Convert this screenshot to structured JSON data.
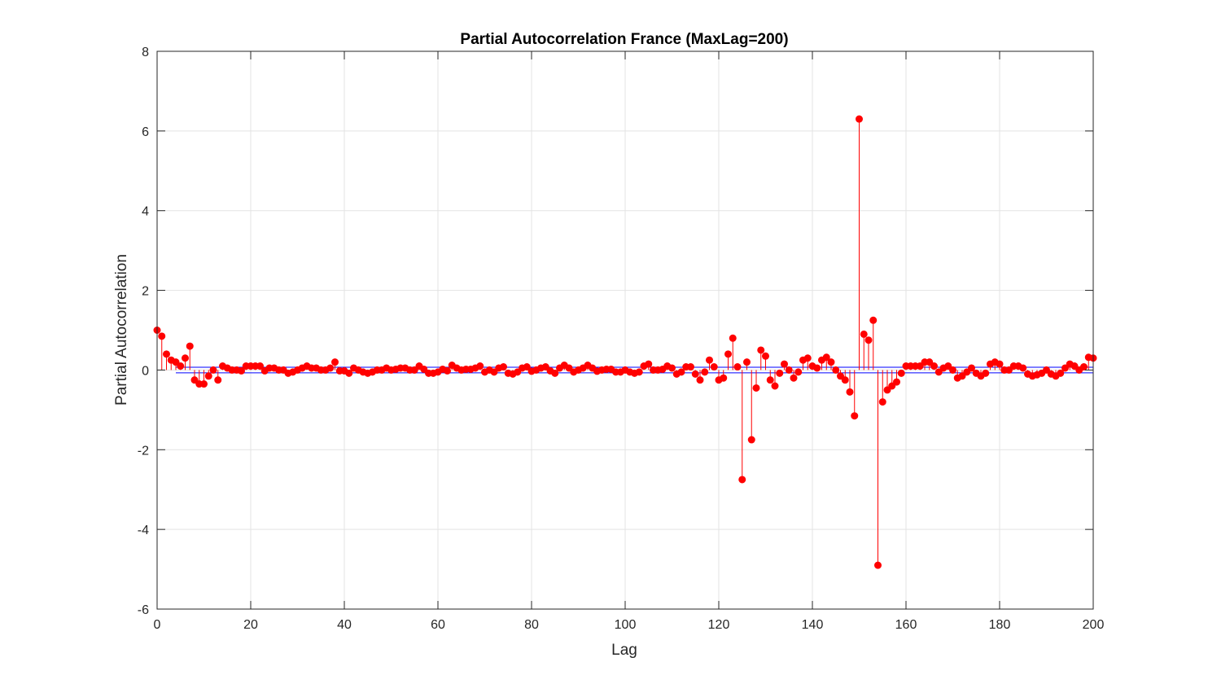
{
  "chart_data": {
    "type": "stem",
    "title": "Partial Autocorrelation France (MaxLag=200)",
    "xlabel": "Lag",
    "ylabel": "Partial Autocorrelation",
    "xlim": [
      0,
      200
    ],
    "ylim": [
      -6,
      8
    ],
    "xticks": [
      0,
      20,
      40,
      60,
      80,
      100,
      120,
      140,
      160,
      180,
      200
    ],
    "yticks": [
      -6,
      -4,
      -2,
      0,
      2,
      4,
      6,
      8
    ],
    "grid": true,
    "confidence_bounds": [
      0.07,
      -0.07
    ],
    "confidence_bounds_x_start": 4,
    "colors": {
      "stem": "#ff0000",
      "bounds": "#0000ff",
      "grid": "#e3e3e3",
      "axis": "#262626"
    },
    "x": [
      0,
      1,
      2,
      3,
      4,
      5,
      6,
      7,
      8,
      9,
      10,
      11,
      12,
      13,
      14,
      15,
      16,
      17,
      18,
      19,
      20,
      21,
      22,
      23,
      24,
      25,
      26,
      27,
      28,
      29,
      30,
      31,
      32,
      33,
      34,
      35,
      36,
      37,
      38,
      39,
      40,
      41,
      42,
      43,
      44,
      45,
      46,
      47,
      48,
      49,
      50,
      51,
      52,
      53,
      54,
      55,
      56,
      57,
      58,
      59,
      60,
      61,
      62,
      63,
      64,
      65,
      66,
      67,
      68,
      69,
      70,
      71,
      72,
      73,
      74,
      75,
      76,
      77,
      78,
      79,
      80,
      81,
      82,
      83,
      84,
      85,
      86,
      87,
      88,
      89,
      90,
      91,
      92,
      93,
      94,
      95,
      96,
      97,
      98,
      99,
      100,
      101,
      102,
      103,
      104,
      105,
      106,
      107,
      108,
      109,
      110,
      111,
      112,
      113,
      114,
      115,
      116,
      117,
      118,
      119,
      120,
      121,
      122,
      123,
      124,
      125,
      126,
      127,
      128,
      129,
      130,
      131,
      132,
      133,
      134,
      135,
      136,
      137,
      138,
      139,
      140,
      141,
      142,
      143,
      144,
      145,
      146,
      147,
      148,
      149,
      150,
      151,
      152,
      153,
      154,
      155,
      156,
      157,
      158,
      159,
      160,
      161,
      162,
      163,
      164,
      165,
      166,
      167,
      168,
      169,
      170,
      171,
      172,
      173,
      174,
      175,
      176,
      177,
      178,
      179,
      180,
      181,
      182,
      183,
      184,
      185,
      186,
      187,
      188,
      189,
      190,
      191,
      192,
      193,
      194,
      195,
      196,
      197,
      198,
      199,
      200
    ],
    "values": [
      1.0,
      0.85,
      0.4,
      0.25,
      0.2,
      0.1,
      0.3,
      0.6,
      -0.25,
      -0.35,
      -0.35,
      -0.15,
      0.0,
      -0.25,
      0.1,
      0.05,
      0.0,
      0.0,
      -0.02,
      0.1,
      0.1,
      0.1,
      0.1,
      -0.02,
      0.05,
      0.05,
      0.0,
      0.0,
      -0.08,
      -0.05,
      0.0,
      0.05,
      0.1,
      0.05,
      0.05,
      0.0,
      0.0,
      0.05,
      0.2,
      -0.02,
      -0.02,
      -0.08,
      0.05,
      0.0,
      -0.05,
      -0.08,
      -0.05,
      0.0,
      0.0,
      0.05,
      0.0,
      0.02,
      0.05,
      0.05,
      0.0,
      0.0,
      0.1,
      0.02,
      -0.08,
      -0.08,
      -0.05,
      0.02,
      -0.02,
      0.12,
      0.05,
      0.0,
      0.02,
      0.02,
      0.05,
      0.1,
      -0.05,
      0.0,
      -0.05,
      0.05,
      0.08,
      -0.08,
      -0.1,
      -0.05,
      0.05,
      0.08,
      -0.03,
      0.0,
      0.05,
      0.08,
      -0.02,
      -0.08,
      0.05,
      0.12,
      0.05,
      -0.05,
      0.0,
      0.05,
      0.12,
      0.05,
      -0.03,
      0.0,
      0.02,
      0.02,
      -0.05,
      -0.05,
      0.0,
      -0.05,
      -0.08,
      -0.05,
      0.1,
      0.15,
      0.0,
      0.0,
      0.02,
      0.1,
      0.05,
      -0.1,
      -0.05,
      0.08,
      0.08,
      -0.1,
      -0.25,
      -0.05,
      0.25,
      0.08,
      -0.25,
      -0.2,
      0.4,
      0.8,
      0.08,
      -2.75,
      0.2,
      -1.75,
      -0.45,
      0.5,
      0.35,
      -0.25,
      -0.4,
      -0.08,
      0.15,
      0.0,
      -0.2,
      -0.05,
      0.25,
      0.3,
      0.1,
      0.05,
      0.25,
      0.32,
      0.2,
      0.0,
      -0.15,
      -0.25,
      -0.55,
      -1.15,
      6.3,
      0.9,
      0.75,
      1.25,
      -4.9,
      -0.8,
      -0.5,
      -0.4,
      -0.3,
      -0.08,
      0.1,
      0.1,
      0.1,
      0.1,
      0.2,
      0.2,
      0.1,
      -0.05,
      0.05,
      0.1,
      0.0,
      -0.2,
      -0.15,
      -0.05,
      0.05,
      -0.08,
      -0.15,
      -0.08,
      0.15,
      0.2,
      0.15,
      0.0,
      0.0,
      0.1,
      0.1,
      0.05,
      -0.1,
      -0.15,
      -0.12,
      -0.08,
      0.0,
      -0.1,
      -0.15,
      -0.08,
      0.05,
      0.15,
      0.1,
      0.0,
      0.08,
      0.32,
      0.3
    ]
  }
}
